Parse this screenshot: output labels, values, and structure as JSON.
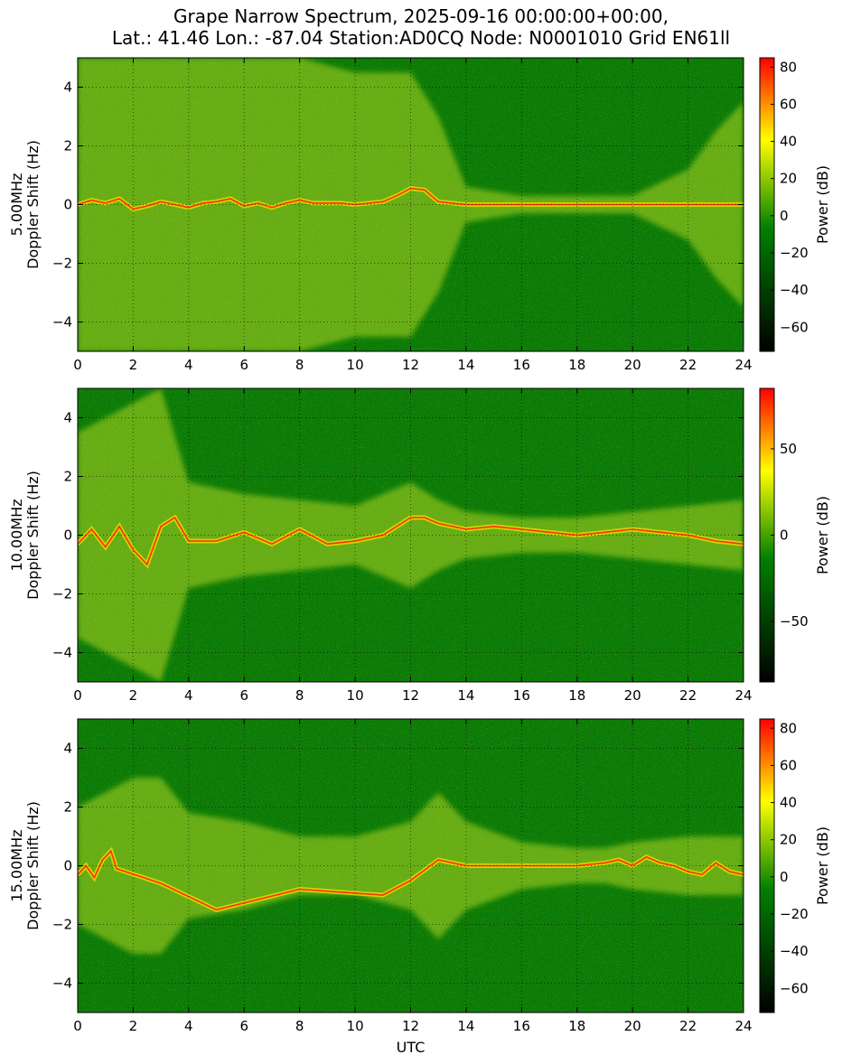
{
  "title_lines": [
    "Grape Narrow Spectrum, 2025-09-16 00:00:00+00:00,",
    "Lat.: 41.46 Lon.: -87.04 Station:AD0CQ Node: N0001010 Grid EN61ll"
  ],
  "colors": {
    "colormap": [
      "#000000",
      "#008000",
      "#ffff00",
      "#ff0000"
    ],
    "grid": "#000000"
  },
  "chart_data": [
    {
      "type": "heatmap",
      "panel": "5.00MHz",
      "ylabel_lines": [
        "5.00MHz",
        "Doppler Shift (Hz)"
      ],
      "xlabel": "",
      "x_ticks": [
        0,
        2,
        4,
        6,
        8,
        10,
        12,
        14,
        16,
        18,
        20,
        22,
        24
      ],
      "y_ticks": [
        -4,
        -2,
        0,
        2,
        4
      ],
      "xlim": [
        0,
        24
      ],
      "ylim": [
        -5,
        5
      ],
      "grid": true,
      "colorbar": {
        "label": "Power (dB)",
        "ticks": [
          -60,
          -40,
          -20,
          0,
          20,
          40,
          60,
          80
        ],
        "range": [
          -73,
          85
        ]
      },
      "doppler_trace": {
        "x": [
          0,
          0.5,
          1,
          1.5,
          2,
          2.5,
          3,
          3.5,
          4,
          4.5,
          5,
          5.5,
          6,
          6.5,
          7,
          7.5,
          8,
          8.5,
          9,
          9.5,
          10,
          10.5,
          11,
          11.5,
          12,
          12.5,
          13,
          14,
          16,
          18,
          20,
          22,
          24
        ],
        "y": [
          0,
          0.15,
          0.05,
          0.2,
          -0.15,
          -0.05,
          0.1,
          0,
          -0.1,
          0.05,
          0.1,
          0.2,
          -0.05,
          0.05,
          -0.1,
          0.05,
          0.15,
          0.05,
          0.05,
          0.05,
          0,
          0.05,
          0.1,
          0.3,
          0.55,
          0.5,
          0.1,
          0,
          0,
          0,
          0,
          0,
          0
        ]
      },
      "broadening": {
        "x": [
          0,
          2,
          4,
          6,
          8,
          10,
          12,
          13,
          14,
          16,
          18,
          20,
          22,
          23,
          24
        ],
        "width": [
          5,
          5,
          5,
          5,
          5,
          4.5,
          4.5,
          3,
          0.6,
          0.3,
          0.3,
          0.3,
          1.2,
          2.5,
          3.5
        ]
      }
    },
    {
      "type": "heatmap",
      "panel": "10.00MHz",
      "ylabel_lines": [
        "10.00MHz",
        "Doppler Shift (Hz)"
      ],
      "xlabel": "",
      "x_ticks": [
        0,
        2,
        4,
        6,
        8,
        10,
        12,
        14,
        16,
        18,
        20,
        22,
        24
      ],
      "y_ticks": [
        -4,
        -2,
        0,
        2,
        4
      ],
      "xlim": [
        0,
        24
      ],
      "ylim": [
        -5,
        5
      ],
      "grid": true,
      "colorbar": {
        "label": "Power (dB)",
        "ticks": [
          -50,
          0,
          50
        ],
        "range": [
          -85,
          85
        ]
      },
      "doppler_trace": {
        "x": [
          0,
          0.5,
          1,
          1.5,
          2,
          2.5,
          3,
          3.5,
          4,
          5,
          6,
          7,
          8,
          9,
          10,
          11,
          12,
          12.5,
          13,
          14,
          15,
          16,
          17,
          18,
          19,
          20,
          21,
          22,
          23,
          24
        ],
        "y": [
          -0.3,
          0.2,
          -0.4,
          0.3,
          -0.5,
          -1.0,
          0.3,
          0.6,
          -0.2,
          -0.2,
          0.1,
          -0.3,
          0.2,
          -0.3,
          -0.2,
          0,
          0.6,
          0.6,
          0.4,
          0.2,
          0.3,
          0.2,
          0.1,
          0,
          0.1,
          0.2,
          0.1,
          0,
          -0.2,
          -0.3
        ]
      },
      "broadening": {
        "x": [
          0,
          2,
          3,
          4,
          6,
          8,
          10,
          12,
          13,
          14,
          16,
          18,
          20,
          22,
          24
        ],
        "width": [
          3.5,
          4.5,
          5,
          1.8,
          1.4,
          1.2,
          1.0,
          1.8,
          1.2,
          0.8,
          0.6,
          0.6,
          0.8,
          1.0,
          1.2
        ]
      }
    },
    {
      "type": "heatmap",
      "panel": "15.00MHz",
      "ylabel_lines": [
        "15.00MHz",
        "Doppler Shift (Hz)"
      ],
      "xlabel": "UTC",
      "x_ticks": [
        0,
        2,
        4,
        6,
        8,
        10,
        12,
        14,
        16,
        18,
        20,
        22,
        24
      ],
      "y_ticks": [
        -4,
        -2,
        0,
        2,
        4
      ],
      "xlim": [
        0,
        24
      ],
      "ylim": [
        -5,
        5
      ],
      "grid": true,
      "colorbar": {
        "label": "Power (dB)",
        "ticks": [
          -60,
          -40,
          -20,
          0,
          20,
          40,
          60,
          80
        ],
        "range": [
          -73,
          85
        ]
      },
      "doppler_trace": {
        "x": [
          0,
          0.3,
          0.6,
          0.9,
          1.2,
          1.4,
          3,
          5,
          8,
          11,
          12,
          13,
          14,
          16,
          18,
          19,
          19.5,
          20,
          20.5,
          21,
          21.5,
          22,
          22.5,
          23,
          23.5,
          24
        ],
        "y": [
          -0.3,
          0,
          -0.4,
          0.2,
          0.5,
          -0.1,
          -0.6,
          -1.5,
          -0.8,
          -1.0,
          -0.5,
          0.2,
          0,
          0,
          0,
          0.1,
          0.2,
          0,
          0.3,
          0.1,
          0,
          -0.2,
          -0.3,
          0.1,
          -0.2,
          -0.3
        ]
      },
      "broadening": {
        "x": [
          0,
          1,
          2,
          3,
          4,
          6,
          8,
          10,
          12,
          13,
          14,
          16,
          18,
          19,
          20,
          22,
          24
        ],
        "width": [
          2,
          2.5,
          3,
          3,
          1.8,
          1.5,
          1.0,
          1.0,
          1.5,
          2.5,
          1.5,
          0.8,
          0.6,
          0.6,
          0.8,
          1.0,
          1.0
        ]
      }
    }
  ]
}
